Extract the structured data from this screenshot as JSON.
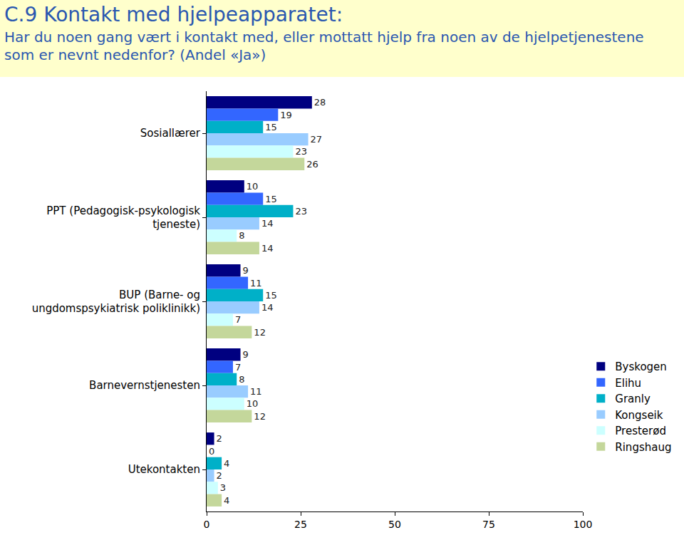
{
  "chart_data": {
    "type": "bar",
    "title": "C.9 Kontakt med hjelpeapparatet:",
    "subtitle": "Har du noen gang vært i kontakt med, eller mottatt hjelp fra noen av de hjelpetjenestene som er nevnt nedenfor? (Andel «Ja»)",
    "orientation": "horizontal",
    "categories": [
      "Sosiallærer",
      "PPT (Pedagogisk-psykologisk tjeneste)",
      "BUP (Barne- og ungdomspsykiatrisk poliklinikk)",
      "Barnevernstjenesten",
      "Utekontakten"
    ],
    "series": [
      {
        "name": "Byskogen",
        "color": "#000080",
        "values": [
          28,
          10,
          9,
          9,
          2
        ]
      },
      {
        "name": "Elihu",
        "color": "#3366ff",
        "values": [
          19,
          15,
          11,
          7,
          0
        ]
      },
      {
        "name": "Granly",
        "color": "#00b0c8",
        "values": [
          15,
          23,
          15,
          8,
          4
        ]
      },
      {
        "name": "Kongseik",
        "color": "#99ccff",
        "values": [
          27,
          14,
          14,
          11,
          2
        ]
      },
      {
        "name": "Presterød",
        "color": "#ccffff",
        "values": [
          23,
          8,
          7,
          10,
          3
        ]
      },
      {
        "name": "Ringshaug",
        "color": "#c4d79b",
        "values": [
          26,
          14,
          12,
          12,
          4
        ]
      }
    ],
    "xlim": [
      0,
      100
    ],
    "xticks": [
      0,
      25,
      50,
      75,
      100
    ],
    "grid": false,
    "legend": "right",
    "data_labels": true
  }
}
